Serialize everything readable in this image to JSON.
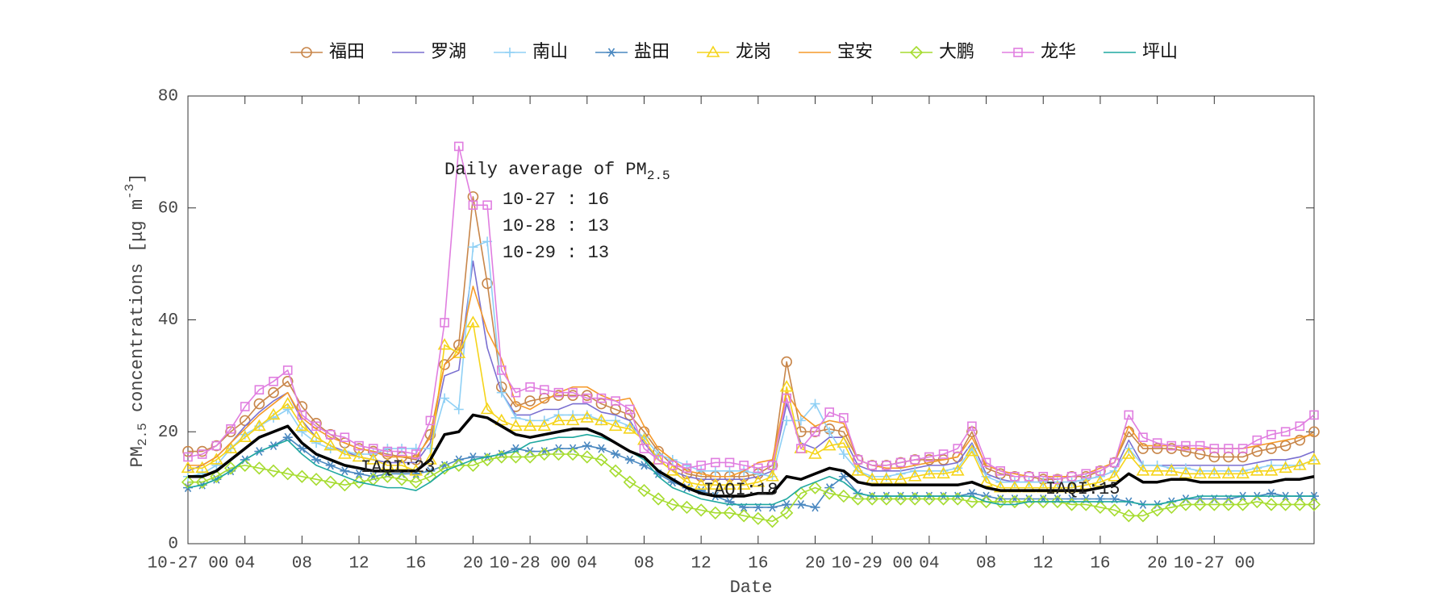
{
  "chart_data": {
    "type": "line",
    "xlabel": "Date",
    "ylabel": {
      "base": "PM",
      "sub": "2.5",
      "text": " concentrations [μg m",
      "sup": "-3",
      "end": "]"
    },
    "annotation_title": {
      "base": "Daily average of PM",
      "sub": "2.5"
    },
    "daily_average": [
      "10-27 : 16",
      "10-28 : 13",
      "10-29 : 13"
    ],
    "iaqi_labels": [
      "IAQI:23",
      "IAQI:18",
      "IAQI:15"
    ],
    "xlim": [
      0,
      79
    ],
    "ylim": [
      0,
      80
    ],
    "yticks": [
      0,
      20,
      40,
      60,
      80
    ],
    "xticks": [
      {
        "value": 0,
        "label": "10-27 00"
      },
      {
        "value": 4,
        "label": "04"
      },
      {
        "value": 8,
        "label": "08"
      },
      12,
      16,
      20,
      {
        "value": 24,
        "label": "10-28 00"
      },
      {
        "value": 28,
        "label": "04"
      },
      {
        "value": 32,
        "label": "08"
      },
      {
        "value": 36,
        "label": "12"
      },
      {
        "value": 40,
        "label": "16"
      },
      {
        "value": 44,
        "label": "20"
      },
      {
        "value": 48,
        "label": "10-29 00"
      },
      {
        "value": 52,
        "label": "04"
      },
      {
        "value": 56,
        "label": "08"
      },
      {
        "value": 60,
        "label": "12"
      },
      {
        "value": 64,
        "label": "16"
      },
      {
        "value": 68,
        "label": "20"
      },
      {
        "value": 72,
        "label": "10-27 00"
      }
    ],
    "x": [
      0,
      1,
      2,
      3,
      4,
      5,
      6,
      7,
      8,
      9,
      10,
      11,
      12,
      13,
      14,
      15,
      16,
      17,
      18,
      19,
      20,
      21,
      22,
      23,
      24,
      25,
      26,
      27,
      28,
      29,
      30,
      31,
      32,
      33,
      34,
      35,
      36,
      37,
      38,
      39,
      40,
      41,
      42,
      43,
      44,
      45,
      46,
      47,
      48,
      49,
      50,
      51,
      52,
      53,
      54,
      55,
      56,
      57,
      58,
      59,
      60,
      61,
      62,
      63,
      64,
      65,
      66,
      67,
      68,
      69,
      70,
      71,
      72,
      73,
      74,
      75,
      76,
      77,
      78,
      79
    ],
    "series": [
      {
        "name": "福田",
        "color": "#c8864a",
        "marker": "o",
        "values": [
          16.5,
          16.5,
          17.5,
          20,
          22,
          25,
          27,
          29,
          24.5,
          21.5,
          19.5,
          18,
          17,
          16.5,
          16,
          15.5,
          15,
          19.5,
          32,
          35.5,
          62,
          46.5,
          28,
          24.5,
          25.5,
          26,
          26.5,
          26.5,
          26.5,
          25,
          24,
          23,
          20,
          16.5,
          14,
          12.5,
          12,
          12,
          12,
          12,
          12.5,
          14,
          32.5,
          20,
          20,
          20.5,
          20,
          15,
          14,
          14,
          14.5,
          15,
          15,
          15,
          15.5,
          20,
          13.5,
          12.5,
          12,
          12,
          11.5,
          11.5,
          12,
          12,
          13,
          14.5,
          20,
          17,
          17,
          17,
          16.5,
          16,
          15.5,
          15.5,
          15.5,
          16.5,
          17,
          17.5,
          18.5,
          20
        ]
      },
      {
        "name": "罗湖",
        "color": "#7a6fd0",
        "marker": "none",
        "values": [
          13,
          14,
          15.5,
          18,
          21,
          23.5,
          25.5,
          27,
          22,
          19,
          17.5,
          16.5,
          15.5,
          15,
          14.5,
          14.5,
          14.5,
          18,
          30,
          31,
          50.5,
          35,
          27,
          23,
          23,
          24,
          24,
          25,
          25,
          23.5,
          23,
          22,
          18,
          15,
          13,
          12,
          11.5,
          11.5,
          11.5,
          11.5,
          12,
          13,
          25,
          18,
          17,
          19,
          19,
          14,
          13,
          13,
          13,
          13.5,
          14,
          14,
          14.5,
          18,
          12.5,
          11.5,
          11,
          11,
          11,
          11,
          11,
          11.5,
          12,
          13,
          18.5,
          14,
          14,
          14,
          14,
          14,
          14,
          14,
          14,
          14.5,
          15,
          15,
          15.5,
          16.5
        ]
      },
      {
        "name": "南山",
        "color": "#8fd0f5",
        "marker": "+",
        "values": [
          12,
          12.5,
          14,
          17,
          19.5,
          21,
          22.5,
          24,
          20,
          18,
          17,
          16.5,
          16,
          16,
          17,
          17,
          17,
          17,
          26,
          24,
          53,
          54,
          27,
          22.5,
          22,
          22,
          23,
          23,
          23,
          22,
          22,
          21,
          19,
          16,
          15,
          14,
          13,
          13,
          13,
          13,
          12.5,
          12,
          22,
          22,
          25,
          20,
          16,
          13,
          12,
          12,
          12.5,
          13,
          13,
          13,
          13.5,
          17,
          12,
          11,
          11,
          11,
          11,
          11,
          11,
          11.5,
          12,
          13,
          17,
          14,
          14,
          13.5,
          13.5,
          13,
          13,
          13,
          13,
          13.5,
          14,
          14,
          14,
          15
        ]
      },
      {
        "name": "盐田",
        "color": "#4a88c0",
        "marker": "*",
        "values": [
          10,
          10.5,
          11.5,
          13,
          15,
          16.5,
          17.5,
          19,
          17,
          15,
          14,
          13,
          12.5,
          12,
          12.5,
          12.5,
          12.5,
          13,
          14,
          15,
          15.5,
          15.5,
          16,
          17,
          16.5,
          16.5,
          17,
          17,
          17.5,
          17,
          16,
          15,
          14,
          12.5,
          11,
          10,
          9.5,
          8.5,
          7.5,
          6.5,
          6.5,
          6.5,
          7,
          7,
          6.5,
          10,
          12,
          9,
          8.5,
          8.5,
          8.5,
          8.5,
          8.5,
          8.5,
          8.5,
          9,
          8.5,
          8,
          8,
          8,
          8,
          8,
          8,
          8,
          8,
          8,
          7.5,
          7,
          7,
          7.5,
          8,
          8,
          8,
          8,
          8.5,
          8.5,
          9,
          8.5,
          8.5,
          8.5
        ]
      },
      {
        "name": "龙岗",
        "color": "#f5d41a",
        "marker": "^",
        "values": [
          13.5,
          13.5,
          15,
          17,
          19,
          21,
          23,
          25,
          21,
          19,
          17.5,
          16,
          15.5,
          15,
          14,
          14,
          13,
          15,
          35.5,
          34,
          39.5,
          24,
          22,
          21,
          21,
          21,
          22,
          22,
          22.5,
          22,
          21,
          20.5,
          18.5,
          15,
          13,
          11,
          10.5,
          10.5,
          10.5,
          10.5,
          11,
          12,
          28,
          17,
          16,
          17.5,
          18,
          13,
          11.5,
          11.5,
          11.5,
          12,
          12.5,
          12.5,
          13,
          16.5,
          11,
          10,
          10,
          10,
          10,
          10,
          10,
          10.5,
          11,
          12,
          16,
          13,
          13,
          13,
          12.5,
          12.5,
          12.5,
          12.5,
          12.5,
          13,
          13,
          13.5,
          14,
          15
        ]
      },
      {
        "name": "宝安",
        "color": "#f59a2a",
        "marker": "none",
        "values": [
          14,
          14,
          15.5,
          18,
          20.5,
          23,
          25,
          27,
          22.5,
          20.5,
          19,
          18,
          17,
          16.5,
          15.5,
          15.5,
          15.5,
          19,
          32,
          34,
          46,
          38,
          33,
          25,
          24,
          25.5,
          27,
          28,
          28,
          26.5,
          25.5,
          26,
          21,
          17,
          15,
          13,
          12.5,
          12,
          12,
          13,
          14.5,
          15,
          27,
          23,
          21,
          22,
          21.5,
          15,
          14,
          13.5,
          13.5,
          14,
          14.5,
          15,
          15.5,
          19,
          14,
          13,
          12.5,
          12,
          12,
          12,
          12,
          12.5,
          13.5,
          14.5,
          21,
          17.5,
          17.5,
          17.5,
          17,
          17,
          17,
          17,
          17,
          17.5,
          18,
          18.5,
          19,
          19.5
        ]
      },
      {
        "name": "大鹏",
        "color": "#a6dc30",
        "marker": "d",
        "values": [
          11,
          11,
          12,
          13.5,
          14,
          13.5,
          13,
          12.5,
          12,
          11.5,
          11,
          10.5,
          11,
          11.5,
          12,
          11.5,
          11,
          12,
          13.5,
          14,
          14,
          15,
          15.5,
          15.5,
          15.5,
          16,
          16,
          16,
          15.5,
          15,
          13,
          11,
          9.5,
          8,
          7,
          6.5,
          6,
          5.5,
          5.5,
          5,
          4.5,
          4,
          5.5,
          9,
          10,
          9,
          8.5,
          8,
          8,
          8,
          8,
          8,
          8,
          8,
          8,
          7.5,
          7.5,
          7.5,
          7.5,
          7.5,
          7.5,
          7.5,
          7,
          7,
          6.5,
          6,
          5,
          5,
          6,
          6.5,
          7,
          7,
          7,
          7,
          7,
          7.5,
          7,
          7,
          7,
          7
        ]
      },
      {
        "name": "龙华",
        "color": "#e07ee0",
        "marker": "s",
        "values": [
          15.5,
          16,
          17.5,
          20.5,
          24.5,
          27.5,
          29,
          31,
          23,
          21,
          19.5,
          19,
          17.5,
          17,
          16.5,
          16.5,
          16,
          22,
          39.5,
          71,
          60.5,
          60.5,
          31,
          27,
          28,
          27.5,
          27,
          27,
          26,
          26,
          25.5,
          24,
          17,
          15,
          14,
          13.5,
          14,
          14.5,
          14.5,
          14,
          13.5,
          14,
          26,
          17,
          20,
          23.5,
          22.5,
          15,
          14,
          14,
          14.5,
          15,
          15.5,
          16,
          17,
          21,
          14.5,
          13,
          12,
          12,
          12,
          11.5,
          12,
          12.5,
          13,
          14.5,
          23,
          19,
          18,
          17.5,
          17.5,
          17.5,
          17,
          17,
          17,
          18.5,
          19.5,
          20,
          21,
          23
        ]
      },
      {
        "name": "坪山",
        "color": "#1fa8a0",
        "marker": "none",
        "values": [
          10,
          10.5,
          11.5,
          13,
          15,
          16.5,
          17.5,
          18.5,
          16,
          14,
          13,
          12,
          11,
          10.5,
          10,
          10,
          9.5,
          11,
          13,
          14,
          15,
          15.5,
          16,
          16.5,
          18,
          18.5,
          19,
          19,
          19.5,
          19,
          18,
          16.5,
          15,
          12,
          10,
          9,
          8,
          7.5,
          7,
          7,
          7,
          7,
          8,
          10,
          11,
          12,
          11,
          9,
          8.5,
          8.5,
          8.5,
          8.5,
          8.5,
          8.5,
          8.5,
          8.5,
          7.5,
          7,
          7,
          7.5,
          7.5,
          7.5,
          7.5,
          7.5,
          7.5,
          7.5,
          7.5,
          7,
          7,
          7.5,
          8,
          8.5,
          8.5,
          8.5,
          8.5,
          8.5,
          8.5,
          8.5,
          8.5,
          8.5
        ]
      }
    ],
    "average_line": {
      "color": "#000000",
      "values": [
        12,
        12,
        13,
        15,
        17,
        19,
        20,
        21,
        18,
        16,
        15,
        14,
        13.5,
        13,
        13,
        13,
        13,
        15,
        19.5,
        20,
        23,
        22.5,
        21,
        19.5,
        19,
        19.5,
        20,
        20.5,
        20.5,
        19.5,
        18,
        16.5,
        15.5,
        13,
        11.5,
        10,
        9,
        8.5,
        8.5,
        8.5,
        9,
        9,
        12,
        11.5,
        12.5,
        13.5,
        13,
        11,
        10.5,
        10.5,
        10.5,
        10.5,
        10.5,
        10.5,
        10.5,
        11,
        10,
        9.5,
        9.5,
        9.5,
        9.5,
        9.5,
        9.5,
        9.5,
        10,
        10.5,
        12.5,
        11,
        11,
        11.5,
        11.5,
        11,
        11,
        11,
        11,
        11,
        11,
        11.5,
        11.5,
        12
      ]
    }
  }
}
